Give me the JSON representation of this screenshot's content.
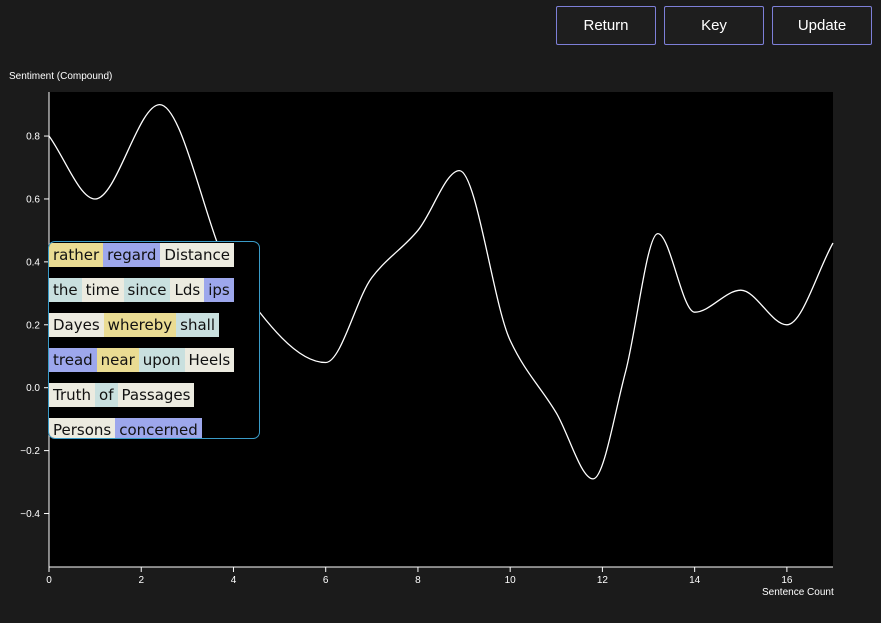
{
  "toolbar": {
    "return_label": "Return",
    "key_label": "Key",
    "update_label": "Update"
  },
  "colors": {
    "yellow": "#eadc93",
    "blue": "#9da7ec",
    "teal": "#c9e0df",
    "cream": "#ecebe0",
    "panel_border": "#3a9bc7",
    "button_border": "#7d7fd8",
    "line": "#ffffff"
  },
  "chart_data": {
    "type": "line",
    "ylabel": "Sentiment (Compound)",
    "xlabel": "Sentence Count",
    "xlim": [
      0,
      17
    ],
    "ylim": [
      -0.57,
      0.94
    ],
    "xticks": [
      "0",
      "2",
      "4",
      "6",
      "8",
      "10",
      "12",
      "14",
      "16"
    ],
    "yticks": [
      "0.8",
      "0.6",
      "0.4",
      "0.2",
      "0.0",
      "−0.2",
      "−0.4"
    ],
    "grid": false,
    "series": [
      {
        "x": [
          0,
          1,
          2.4,
          4,
          6,
          7,
          8,
          8.9,
          10,
          11,
          11.8,
          12.5,
          13.2,
          14,
          15,
          16,
          17
        ],
        "values": [
          0.8,
          0.6,
          0.9,
          0.35,
          0.08,
          0.35,
          0.5,
          0.69,
          0.15,
          -0.08,
          -0.29,
          0.05,
          0.49,
          0.24,
          0.31,
          0.2,
          0.46
        ]
      }
    ]
  },
  "word_panel": {
    "lines": [
      [
        {
          "text": "rather",
          "color": "yellow"
        },
        {
          "text": "regard",
          "color": "blue"
        },
        {
          "text": "Distance",
          "color": "cream"
        }
      ],
      [
        {
          "text": "the",
          "color": "teal"
        },
        {
          "text": "time",
          "color": "cream"
        },
        {
          "text": "since",
          "color": "teal"
        },
        {
          "text": "Lds",
          "color": "cream"
        },
        {
          "text": "ips",
          "color": "blue"
        }
      ],
      [
        {
          "text": "Dayes",
          "color": "cream"
        },
        {
          "text": "whereby",
          "color": "yellow"
        },
        {
          "text": "shall",
          "color": "teal"
        }
      ],
      [
        {
          "text": "tread",
          "color": "blue"
        },
        {
          "text": "near",
          "color": "yellow"
        },
        {
          "text": "upon",
          "color": "teal"
        },
        {
          "text": "Heels",
          "color": "cream"
        }
      ],
      [
        {
          "text": "Truth",
          "color": "cream"
        },
        {
          "text": "of",
          "color": "teal"
        },
        {
          "text": "Passages",
          "color": "cream"
        }
      ],
      [
        {
          "text": "Persons",
          "color": "cream"
        },
        {
          "text": "concerned",
          "color": "blue"
        }
      ]
    ]
  }
}
